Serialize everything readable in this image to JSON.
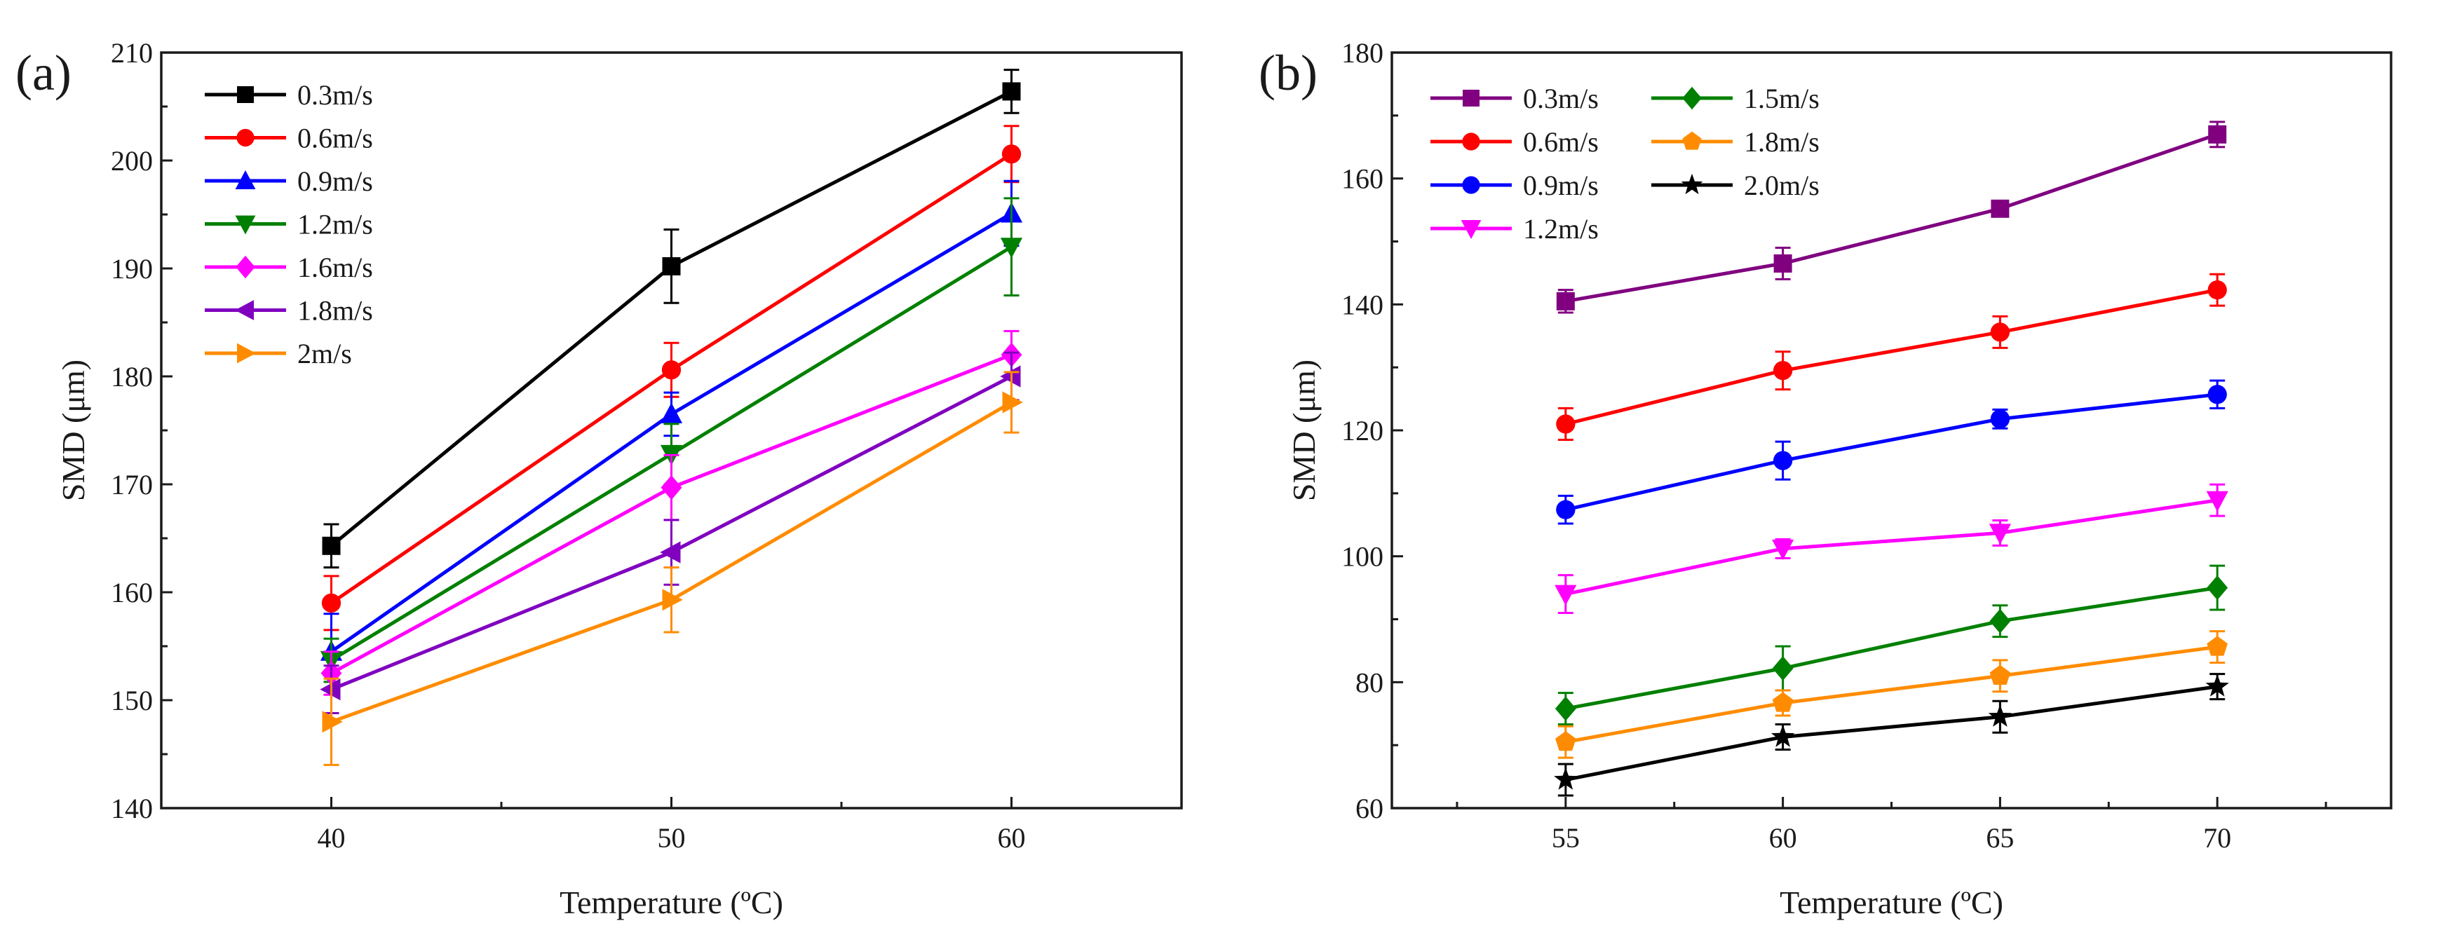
{
  "chart_data": [
    {
      "type": "line",
      "panel_label": "(a)",
      "xlabel": "Temperature (ºC)",
      "ylabel": "SMD (μm)",
      "x": [
        40,
        50,
        60
      ],
      "xlim": [
        35,
        65
      ],
      "ylim": [
        140,
        210
      ],
      "xticks": [
        40,
        50,
        60
      ],
      "yticks": [
        140,
        150,
        160,
        170,
        180,
        190,
        200,
        210
      ],
      "legend_position": "top-left",
      "legend_columns": 1,
      "series": [
        {
          "name": "0.3m/s",
          "color": "#000000",
          "marker": "square",
          "values": [
            164.3,
            190.2,
            206.4
          ],
          "errors": [
            2.0,
            3.4,
            2.0
          ]
        },
        {
          "name": "0.6m/s",
          "color": "#ff0000",
          "marker": "circle",
          "values": [
            159.0,
            180.6,
            200.6
          ],
          "errors": [
            2.5,
            2.5,
            2.6
          ]
        },
        {
          "name": "0.9m/s",
          "color": "#0000ff",
          "marker": "triangle-up",
          "values": [
            154.5,
            176.5,
            195.1
          ],
          "errors": [
            3.5,
            2.0,
            3.0
          ]
        },
        {
          "name": "1.2m/s",
          "color": "#008000",
          "marker": "triangle-down",
          "values": [
            153.7,
            172.8,
            192.0
          ],
          "errors": [
            2.0,
            2.8,
            4.5
          ]
        },
        {
          "name": "1.6m/s",
          "color": "#ff00ff",
          "marker": "diamond",
          "values": [
            152.5,
            169.7,
            182.0
          ],
          "errors": [
            2.0,
            3.0,
            2.2
          ]
        },
        {
          "name": "1.8m/s",
          "color": "#8000c0",
          "marker": "triangle-left",
          "values": [
            151.0,
            163.7,
            180.0
          ],
          "errors": [
            2.2,
            3.0,
            2.2
          ]
        },
        {
          "name": "2m/s",
          "color": "#ff8c00",
          "marker": "triangle-right",
          "values": [
            148.0,
            159.3,
            177.6
          ],
          "errors": [
            4.0,
            3.0,
            2.8
          ]
        }
      ]
    },
    {
      "type": "line",
      "panel_label": "(b)",
      "xlabel": "Temperature (ºC)",
      "ylabel": "SMD (μm)",
      "x": [
        55,
        60,
        65,
        70
      ],
      "xlim": [
        51,
        74
      ],
      "ylim": [
        60,
        180
      ],
      "xticks": [
        55,
        60,
        65,
        70
      ],
      "yticks": [
        60,
        80,
        100,
        120,
        140,
        160,
        180
      ],
      "legend_position": "top-left",
      "legend_columns": 2,
      "series": [
        {
          "name": "0.3m/s",
          "color": "#800080",
          "marker": "square",
          "values": [
            140.5,
            146.5,
            155.2,
            167.0
          ],
          "errors": [
            1.8,
            2.5,
            1.0,
            2.0
          ]
        },
        {
          "name": "0.6m/s",
          "color": "#ff0000",
          "marker": "circle",
          "values": [
            121.0,
            129.5,
            135.6,
            142.3
          ],
          "errors": [
            2.5,
            3.0,
            2.5,
            2.5
          ]
        },
        {
          "name": "0.9m/s",
          "color": "#0000ff",
          "marker": "circle",
          "values": [
            107.4,
            115.2,
            121.8,
            125.7
          ],
          "errors": [
            2.2,
            3.0,
            1.5,
            2.2
          ]
        },
        {
          "name": "1.2m/s",
          "color": "#ff00ff",
          "marker": "triangle-down",
          "values": [
            94.0,
            101.2,
            103.7,
            108.9
          ],
          "errors": [
            3.0,
            1.5,
            2.0,
            2.5
          ]
        },
        {
          "name": "1.5m/s",
          "color": "#008000",
          "marker": "diamond",
          "values": [
            75.8,
            82.2,
            89.7,
            95.0
          ],
          "errors": [
            2.5,
            3.5,
            2.5,
            3.5
          ]
        },
        {
          "name": "1.8m/s",
          "color": "#ff8c00",
          "marker": "pentagon",
          "values": [
            70.5,
            76.7,
            81.0,
            85.6
          ],
          "errors": [
            2.5,
            2.0,
            2.5,
            2.5
          ]
        },
        {
          "name": "2.0m/s",
          "color": "#000000",
          "marker": "star",
          "values": [
            64.5,
            71.3,
            74.5,
            79.3
          ],
          "errors": [
            2.5,
            2.0,
            2.5,
            2.0
          ]
        }
      ]
    }
  ]
}
